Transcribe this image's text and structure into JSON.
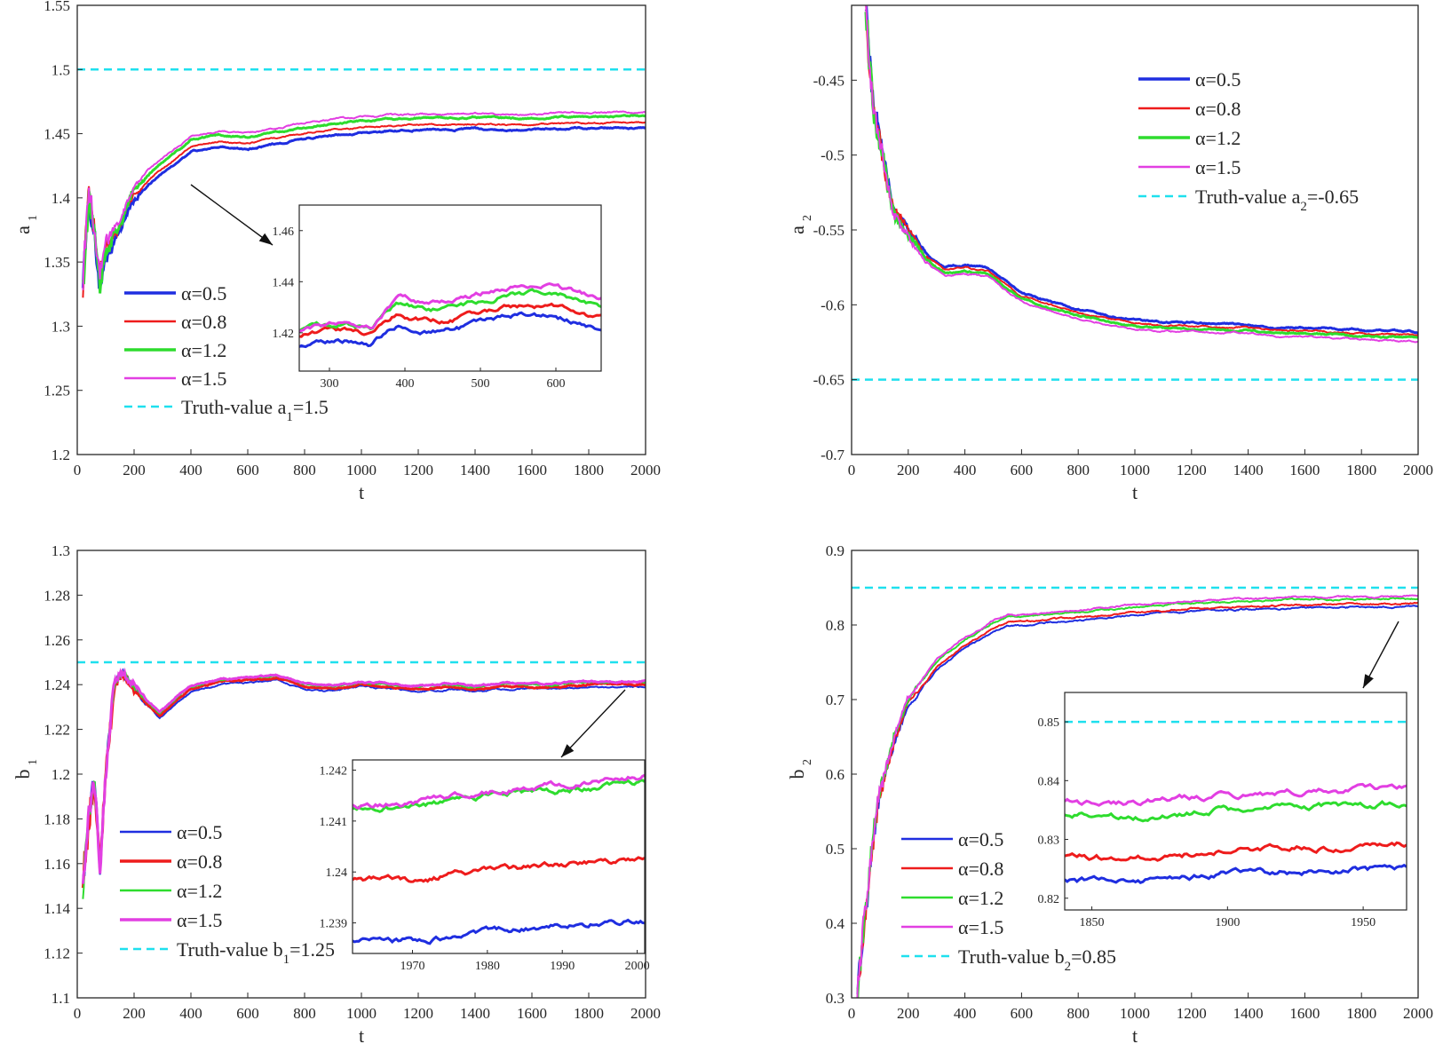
{
  "figure": {
    "background": "#ffffff",
    "axis_color": "#262626"
  },
  "chart_data": [
    {
      "id": "a1",
      "type": "line",
      "xlabel": "t",
      "ylabel": "a",
      "ylabel_sub": "1",
      "xlim": [
        0,
        2000
      ],
      "ylim": [
        1.2,
        1.55
      ],
      "xticks": [
        0,
        200,
        400,
        600,
        800,
        1000,
        1200,
        1400,
        1600,
        1800,
        2000
      ],
      "yticks": [
        1.2,
        1.25,
        1.3,
        1.35,
        1.4,
        1.45,
        1.5,
        1.55
      ],
      "truth": 1.5,
      "curve": {
        "t": [
          20,
          40,
          60,
          80,
          100,
          140,
          200,
          260,
          320,
          380,
          400,
          500,
          600,
          700,
          800,
          900,
          1000,
          1100,
          1200,
          1300,
          1400,
          1500,
          1600,
          1700,
          1800,
          2000
        ],
        "v": [
          1.33,
          1.4,
          1.37,
          1.333,
          1.355,
          1.372,
          1.398,
          1.412,
          1.422,
          1.432,
          1.436,
          1.44,
          1.438,
          1.442,
          1.446,
          1.449,
          1.451,
          1.452,
          1.453,
          1.453,
          1.454,
          1.453,
          1.453,
          1.454,
          1.454,
          1.455
        ]
      },
      "series": [
        {
          "name": "α=0.5",
          "color": "#1f2ee0",
          "offset": 0.0,
          "width": 3
        },
        {
          "name": "α=0.8",
          "color": "#ee1c1c",
          "offset": 0.004,
          "width": 2
        },
        {
          "name": "α=1.2",
          "color": "#2edc2e",
          "offset": 0.009,
          "width": 3
        },
        {
          "name": "α=1.5",
          "color": "#e23fe2",
          "offset": 0.012,
          "width": 2
        }
      ],
      "truth_legend": {
        "prefix": "Truth-value a",
        "sub": "1",
        "suffix": "=1.5"
      },
      "legend_position": "lower-left",
      "inset": {
        "xlim": [
          260,
          660
        ],
        "ylim": [
          1.405,
          1.47
        ],
        "xticks": [
          300,
          400,
          500,
          600
        ],
        "yticks": [
          1.42,
          1.44,
          1.46
        ],
        "tick_labels": [
          "300",
          "400",
          "500",
          "600"
        ],
        "ytick_labels": [
          "1.42",
          "1.44",
          "1.46"
        ]
      }
    },
    {
      "id": "a2",
      "type": "line",
      "xlabel": "t",
      "ylabel": "a",
      "ylabel_sub": "2",
      "xlim": [
        0,
        2000
      ],
      "ylim": [
        -0.7,
        -0.4
      ],
      "xticks": [
        0,
        200,
        400,
        600,
        800,
        1000,
        1200,
        1400,
        1600,
        1800,
        2000
      ],
      "yticks": [
        -0.7,
        -0.65,
        -0.6,
        -0.55,
        -0.5,
        -0.45
      ],
      "truth": -0.65,
      "curve": {
        "t": [
          50,
          60,
          80,
          100,
          130,
          150,
          200,
          260,
          330,
          400,
          480,
          550,
          600,
          700,
          800,
          900,
          1000,
          1100,
          1200,
          1300,
          1400,
          1500,
          1600,
          1700,
          1800,
          2000
        ],
        "v": [
          -0.4,
          -0.43,
          -0.47,
          -0.49,
          -0.52,
          -0.535,
          -0.55,
          -0.565,
          -0.575,
          -0.573,
          -0.575,
          -0.585,
          -0.592,
          -0.598,
          -0.603,
          -0.607,
          -0.61,
          -0.612,
          -0.612,
          -0.613,
          -0.613,
          -0.615,
          -0.615,
          -0.616,
          -0.617,
          -0.618
        ]
      },
      "series": [
        {
          "name": "α=0.5",
          "color": "#1f2ee0",
          "offset": 0.0,
          "width": 3
        },
        {
          "name": "α=0.8",
          "color": "#ee1c1c",
          "offset": -0.002,
          "width": 2
        },
        {
          "name": "α=1.2",
          "color": "#2edc2e",
          "offset": -0.004,
          "width": 3
        },
        {
          "name": "α=1.5",
          "color": "#e23fe2",
          "offset": -0.006,
          "width": 2
        }
      ],
      "truth_legend": {
        "prefix": "Truth-value a",
        "sub": "2",
        "suffix": "=-0.65"
      },
      "legend_position": "upper-right"
    },
    {
      "id": "b1",
      "type": "line",
      "xlabel": "t",
      "ylabel": "b",
      "ylabel_sub": "1",
      "xlim": [
        0,
        2000
      ],
      "ylim": [
        1.1,
        1.3
      ],
      "xticks": [
        0,
        200,
        400,
        600,
        800,
        1000,
        1200,
        1400,
        1600,
        1800,
        2000
      ],
      "yticks": [
        1.1,
        1.12,
        1.14,
        1.16,
        1.18,
        1.2,
        1.22,
        1.24,
        1.26,
        1.28,
        1.3
      ],
      "truth": 1.25,
      "curve": {
        "t": [
          20,
          40,
          60,
          80,
          100,
          130,
          160,
          200,
          250,
          290,
          350,
          400,
          500,
          600,
          700,
          800,
          900,
          1000,
          1100,
          1200,
          1300,
          1400,
          1500,
          1600,
          1700,
          1800,
          2000
        ],
        "v": [
          1.15,
          1.18,
          1.2,
          1.158,
          1.2,
          1.24,
          1.245,
          1.238,
          1.23,
          1.225,
          1.232,
          1.237,
          1.24,
          1.241,
          1.242,
          1.238,
          1.237,
          1.239,
          1.238,
          1.237,
          1.238,
          1.237,
          1.238,
          1.238,
          1.238,
          1.239,
          1.2392
        ]
      },
      "series": [
        {
          "name": "α=0.5",
          "color": "#1f2ee0",
          "offset": 0.0,
          "width": 2
        },
        {
          "name": "α=0.8",
          "color": "#ee1c1c",
          "offset": 0.001,
          "width": 3
        },
        {
          "name": "α=1.2",
          "color": "#2edc2e",
          "offset": 0.002,
          "width": 2
        },
        {
          "name": "α=1.5",
          "color": "#e23fe2",
          "offset": 0.0025,
          "width": 3
        }
      ],
      "truth_legend": {
        "prefix": "Truth-value b",
        "sub": "1",
        "suffix": "=1.25"
      },
      "legend_position": "lower-left",
      "inset": {
        "xlim": [
          1962,
          2001
        ],
        "ylim": [
          1.2384,
          1.2422
        ],
        "xticks": [
          1970,
          1980,
          1990,
          2000
        ],
        "yticks": [
          1.239,
          1.24,
          1.241,
          1.242
        ],
        "tick_labels": [
          "1970",
          "1980",
          "1990",
          "2000"
        ],
        "ytick_labels": [
          "1.239",
          "1.24",
          "1.241",
          "1.242"
        ]
      }
    },
    {
      "id": "b2",
      "type": "line",
      "xlabel": "t",
      "ylabel": "b",
      "ylabel_sub": "2",
      "xlim": [
        0,
        2000
      ],
      "ylim": [
        0.3,
        0.9
      ],
      "xticks": [
        0,
        200,
        400,
        600,
        800,
        1000,
        1200,
        1400,
        1600,
        1800,
        2000
      ],
      "yticks": [
        0.3,
        0.4,
        0.5,
        0.6,
        0.7,
        0.8,
        0.9
      ],
      "truth": 0.85,
      "curve": {
        "t": [
          20,
          40,
          60,
          80,
          100,
          150,
          200,
          260,
          300,
          350,
          400,
          450,
          500,
          550,
          600,
          700,
          800,
          900,
          1000,
          1200,
          1400,
          1600,
          1800,
          2000
        ],
        "v": [
          0.3,
          0.38,
          0.45,
          0.52,
          0.57,
          0.64,
          0.69,
          0.72,
          0.74,
          0.755,
          0.77,
          0.78,
          0.792,
          0.8,
          0.8,
          0.803,
          0.806,
          0.81,
          0.813,
          0.818,
          0.821,
          0.823,
          0.824,
          0.825
        ]
      },
      "series": [
        {
          "name": "α=0.5",
          "color": "#1f2ee0",
          "offset": 0.0,
          "width": 2
        },
        {
          "name": "α=0.8",
          "color": "#ee1c1c",
          "offset": 0.004,
          "width": 2
        },
        {
          "name": "α=1.2",
          "color": "#2edc2e",
          "offset": 0.011,
          "width": 2
        },
        {
          "name": "α=1.5",
          "color": "#e23fe2",
          "offset": 0.014,
          "width": 2
        }
      ],
      "truth_legend": {
        "prefix": "Truth-value b",
        "sub": "2",
        "suffix": "=0.85"
      },
      "legend_position": "lower-left",
      "inset": {
        "xlim": [
          1840,
          1966
        ],
        "ylim": [
          0.818,
          0.855
        ],
        "xticks": [
          1850,
          1900,
          1950
        ],
        "yticks": [
          0.82,
          0.83,
          0.84,
          0.85
        ],
        "tick_labels": [
          "1850",
          "1900",
          "1950"
        ],
        "ytick_labels": [
          "0.82",
          "0.83",
          "0.84",
          "0.85"
        ]
      }
    }
  ]
}
